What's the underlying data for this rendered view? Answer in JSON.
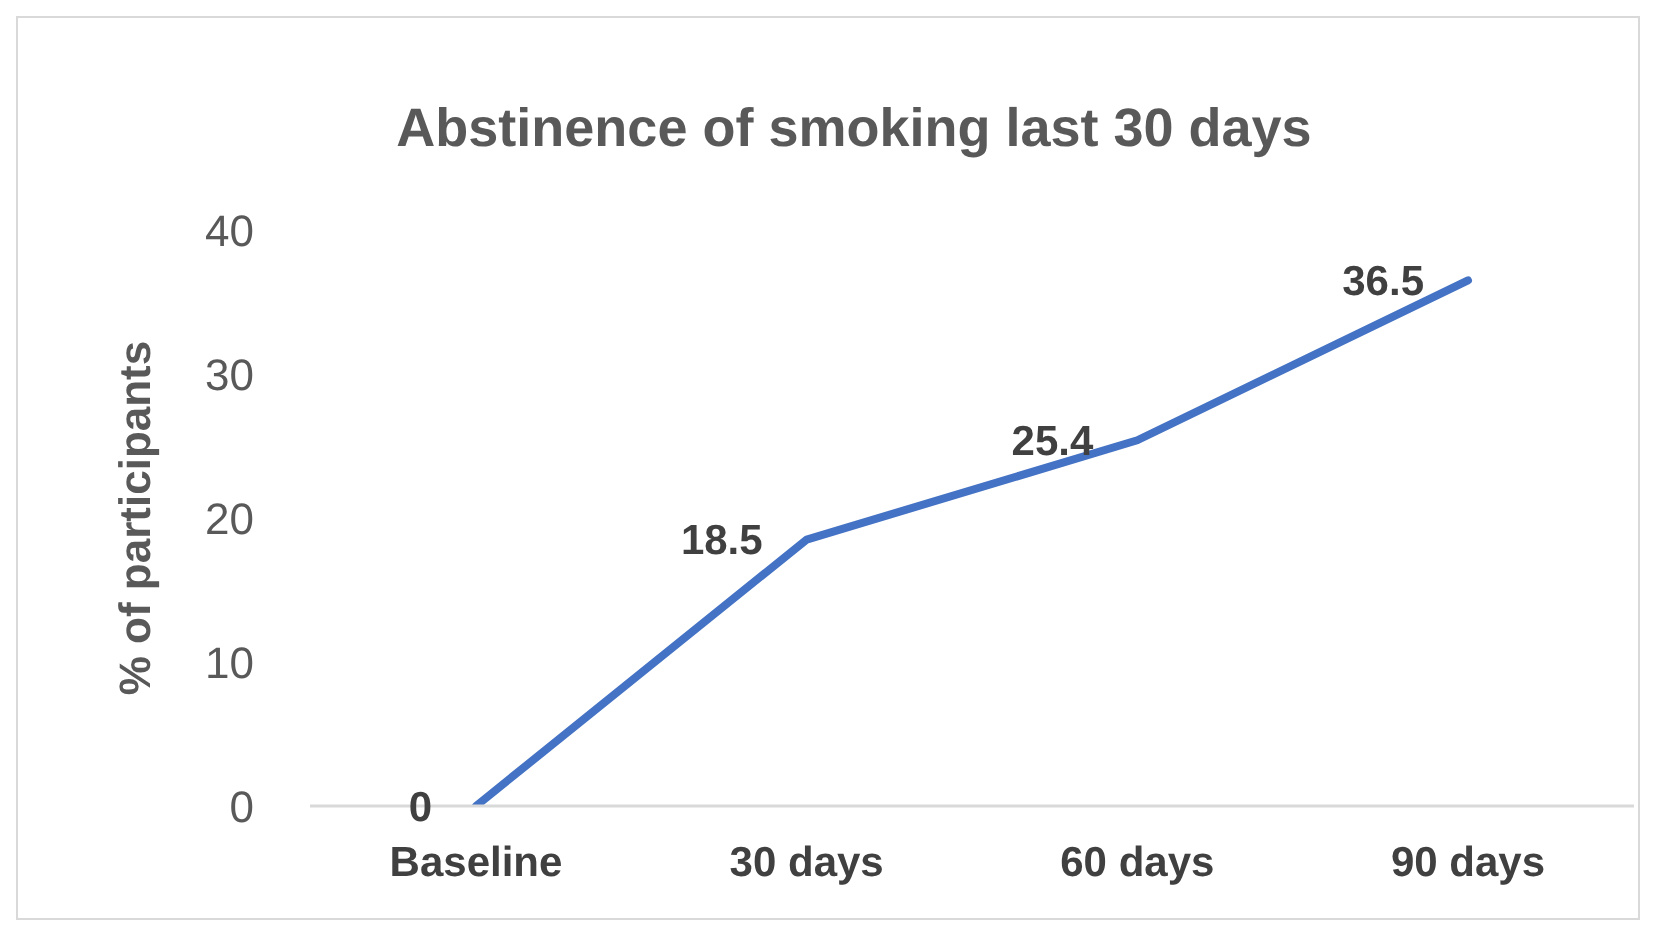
{
  "chart_data": {
    "type": "line",
    "title": "Abstinence of smoking last 30 days",
    "ylabel": "% of participants",
    "categories": [
      "Baseline",
      "30 days",
      "60 days",
      "90 days"
    ],
    "values": [
      0,
      18.5,
      25.4,
      36.5
    ],
    "color": "#4472c4",
    "ylim": [
      0,
      40
    ],
    "yticks": [
      0,
      10,
      20,
      30,
      40
    ],
    "grid": false,
    "legend": false,
    "marker": "none",
    "data_labels": true
  }
}
